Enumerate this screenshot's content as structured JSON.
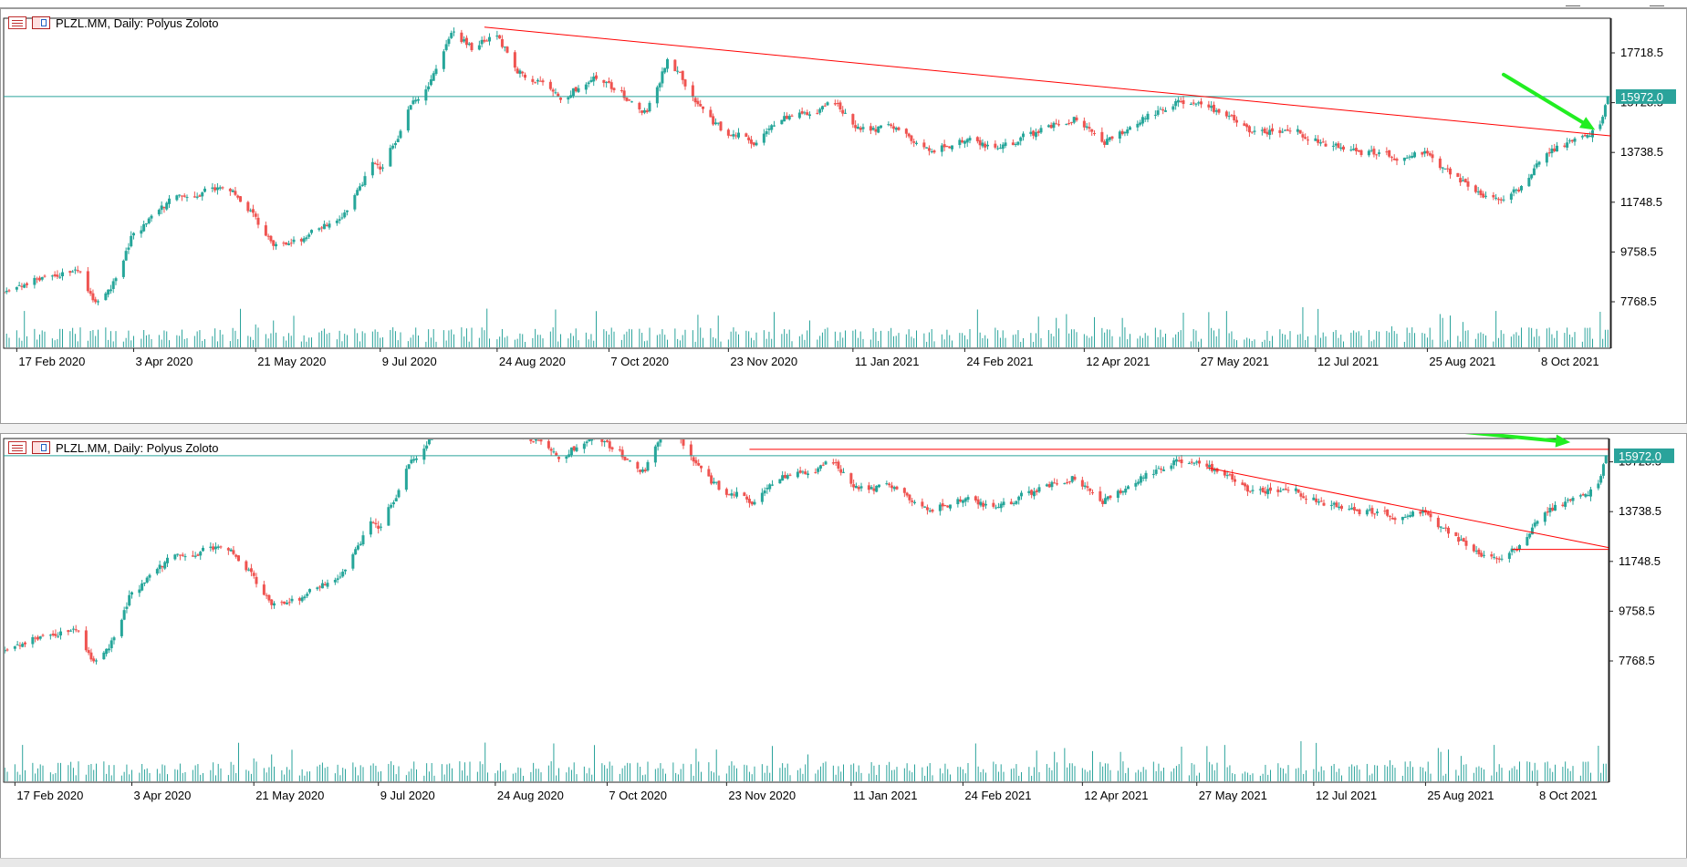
{
  "window": {
    "controls": [
      "minimize",
      "close"
    ]
  },
  "chart_data": [
    {
      "type": "candlestick",
      "symbol_label": "PLZL.MM, Daily:  Polyus Zoloto",
      "y_ticks": [
        "17718.5",
        "15728.5",
        "13738.5",
        "11748.5",
        "9758.5",
        "7768.5"
      ],
      "x_ticks": [
        "17 Feb 2020",
        "3 Apr 2020",
        "21 May 2020",
        "9 Jul 2020",
        "24 Aug 2020",
        "7 Oct 2020",
        "23 Nov 2020",
        "11 Jan 2021",
        "24 Feb 2021",
        "12 Apr 2021",
        "27 May 2021",
        "12 Jul 2021",
        "25 Aug 2021",
        "8 Oct 2021"
      ],
      "ylim": [
        6500,
        19000
      ],
      "x_range": [
        "2020-02-10",
        "2021-11-05"
      ],
      "current_price": "15972.0",
      "price_path": [
        [
          "2020-02-10",
          8100
        ],
        [
          "2020-03-02",
          8900
        ],
        [
          "2020-03-12",
          9200
        ],
        [
          "2020-03-19",
          7600
        ],
        [
          "2020-03-26",
          8500
        ],
        [
          "2020-04-03",
          10600
        ],
        [
          "2020-04-20",
          11900
        ],
        [
          "2020-05-05",
          12300
        ],
        [
          "2020-05-15",
          11900
        ],
        [
          "2020-05-28",
          10000
        ],
        [
          "2020-06-08",
          10300
        ],
        [
          "2020-06-25",
          11400
        ],
        [
          "2020-07-06",
          13300
        ],
        [
          "2020-07-10",
          13000
        ],
        [
          "2020-07-20",
          15500
        ],
        [
          "2020-07-30",
          16800
        ],
        [
          "2020-08-06",
          18600
        ],
        [
          "2020-08-14",
          17900
        ],
        [
          "2020-08-24",
          18400
        ],
        [
          "2020-09-01",
          17000
        ],
        [
          "2020-09-18",
          16100
        ],
        [
          "2020-10-02",
          16600
        ],
        [
          "2020-10-10",
          16200
        ],
        [
          "2020-10-22",
          15300
        ],
        [
          "2020-10-30",
          17500
        ],
        [
          "2020-11-10",
          15900
        ],
        [
          "2020-11-20",
          14600
        ],
        [
          "2020-12-03",
          14200
        ],
        [
          "2020-12-15",
          15000
        ],
        [
          "2020-12-24",
          15200
        ],
        [
          "2021-01-05",
          15700
        ],
        [
          "2021-01-12",
          14900
        ],
        [
          "2021-01-28",
          14600
        ],
        [
          "2021-02-10",
          14000
        ],
        [
          "2021-02-24",
          14200
        ],
        [
          "2021-03-10",
          13700
        ],
        [
          "2021-03-25",
          14600
        ],
        [
          "2021-04-08",
          15200
        ],
        [
          "2021-04-19",
          14000
        ],
        [
          "2021-05-05",
          15200
        ],
        [
          "2021-05-24",
          15900
        ],
        [
          "2021-06-03",
          15400
        ],
        [
          "2021-06-18",
          14600
        ],
        [
          "2021-07-05",
          14500
        ],
        [
          "2021-07-22",
          13900
        ],
        [
          "2021-08-05",
          13700
        ],
        [
          "2021-08-25",
          13600
        ],
        [
          "2021-09-08",
          12600
        ],
        [
          "2021-09-22",
          11800
        ],
        [
          "2021-10-04",
          12600
        ],
        [
          "2021-10-13",
          13900
        ],
        [
          "2021-10-25",
          14100
        ],
        [
          "2021-11-02",
          15100
        ],
        [
          "2021-11-04",
          15972
        ]
      ],
      "annotations": [
        {
          "kind": "horizontal-line",
          "label": "current price line",
          "price": 15972.0,
          "color": "#2aa39b"
        },
        {
          "kind": "trendline",
          "color": "#ff0000",
          "from": [
            "2020-08-19",
            18750
          ],
          "to": [
            "2021-11-05",
            14400
          ]
        },
        {
          "kind": "arrow",
          "color": "#22ee22",
          "from": [
            "2021-09-24",
            16850
          ],
          "to": [
            "2021-10-30",
            14640
          ]
        }
      ]
    },
    {
      "type": "candlestick",
      "symbol_label": "PLZL.MM, Daily:  Polyus Zoloto",
      "y_ticks": [
        "17718.5",
        "15728.5",
        "13738.5",
        "11748.5",
        "9758.5",
        "7768.5"
      ],
      "x_ticks": [
        "17 Feb 2020",
        "3 Apr 2020",
        "21 May 2020",
        "9 Jul 2020",
        "24 Aug 2020",
        "7 Oct 2020",
        "23 Nov 2020",
        "11 Jan 2021",
        "24 Feb 2021",
        "12 Apr 2021",
        "27 May 2021",
        "12 Jul 2021",
        "25 Aug 2021",
        "8 Oct 2021"
      ],
      "ylim": [
        6500,
        19000
      ],
      "x_range": [
        "2020-02-10",
        "2021-11-05"
      ],
      "current_price": "15972.0",
      "price_path": [
        [
          "2020-02-10",
          8100
        ],
        [
          "2020-03-02",
          8900
        ],
        [
          "2020-03-12",
          9200
        ],
        [
          "2020-03-19",
          7600
        ],
        [
          "2020-03-26",
          8500
        ],
        [
          "2020-04-03",
          10600
        ],
        [
          "2020-04-20",
          11900
        ],
        [
          "2020-05-05",
          12300
        ],
        [
          "2020-05-15",
          11900
        ],
        [
          "2020-05-28",
          10000
        ],
        [
          "2020-06-08",
          10300
        ],
        [
          "2020-06-25",
          11400
        ],
        [
          "2020-07-06",
          13300
        ],
        [
          "2020-07-10",
          13000
        ],
        [
          "2020-07-20",
          15500
        ],
        [
          "2020-07-30",
          16800
        ],
        [
          "2020-08-06",
          18600
        ],
        [
          "2020-08-14",
          17900
        ],
        [
          "2020-08-24",
          18400
        ],
        [
          "2020-09-01",
          17000
        ],
        [
          "2020-09-18",
          16100
        ],
        [
          "2020-10-02",
          16600
        ],
        [
          "2020-10-10",
          16200
        ],
        [
          "2020-10-22",
          15300
        ],
        [
          "2020-10-30",
          17500
        ],
        [
          "2020-11-10",
          15900
        ],
        [
          "2020-11-20",
          14600
        ],
        [
          "2020-12-03",
          14200
        ],
        [
          "2020-12-15",
          15000
        ],
        [
          "2020-12-24",
          15200
        ],
        [
          "2021-01-05",
          15700
        ],
        [
          "2021-01-12",
          14900
        ],
        [
          "2021-01-28",
          14600
        ],
        [
          "2021-02-10",
          14000
        ],
        [
          "2021-02-24",
          14200
        ],
        [
          "2021-03-10",
          13700
        ],
        [
          "2021-03-25",
          14600
        ],
        [
          "2021-04-08",
          15200
        ],
        [
          "2021-04-19",
          14000
        ],
        [
          "2021-05-05",
          15200
        ],
        [
          "2021-05-24",
          15900
        ],
        [
          "2021-06-03",
          15400
        ],
        [
          "2021-06-18",
          14600
        ],
        [
          "2021-07-05",
          14500
        ],
        [
          "2021-07-22",
          13900
        ],
        [
          "2021-08-05",
          13700
        ],
        [
          "2021-08-25",
          13600
        ],
        [
          "2021-09-08",
          12600
        ],
        [
          "2021-09-22",
          11800
        ],
        [
          "2021-10-04",
          12600
        ],
        [
          "2021-10-13",
          13900
        ],
        [
          "2021-10-25",
          14100
        ],
        [
          "2021-11-02",
          15100
        ],
        [
          "2021-11-04",
          15972
        ]
      ],
      "annotations": [
        {
          "kind": "horizontal-line",
          "label": "current price line",
          "price": 15972.0,
          "color": "#2aa39b"
        },
        {
          "kind": "horizontal-line",
          "label": "resistance",
          "price": 16230,
          "from": "2020-12-02",
          "to": "2021-11-05",
          "color": "#ff0000"
        },
        {
          "kind": "trendline",
          "color": "#ff0000",
          "from": [
            "2021-05-31",
            15500
          ],
          "to": [
            "2021-11-05",
            12300
          ]
        },
        {
          "kind": "horizontal-line",
          "label": "support",
          "price": 12230,
          "from": "2021-09-28",
          "to": "2021-11-05",
          "color": "#ff0000"
        },
        {
          "kind": "arrow",
          "color": "#22ee22",
          "from": [
            "2021-08-31",
            17010
          ],
          "to": [
            "2021-10-21",
            16510
          ]
        }
      ]
    }
  ]
}
